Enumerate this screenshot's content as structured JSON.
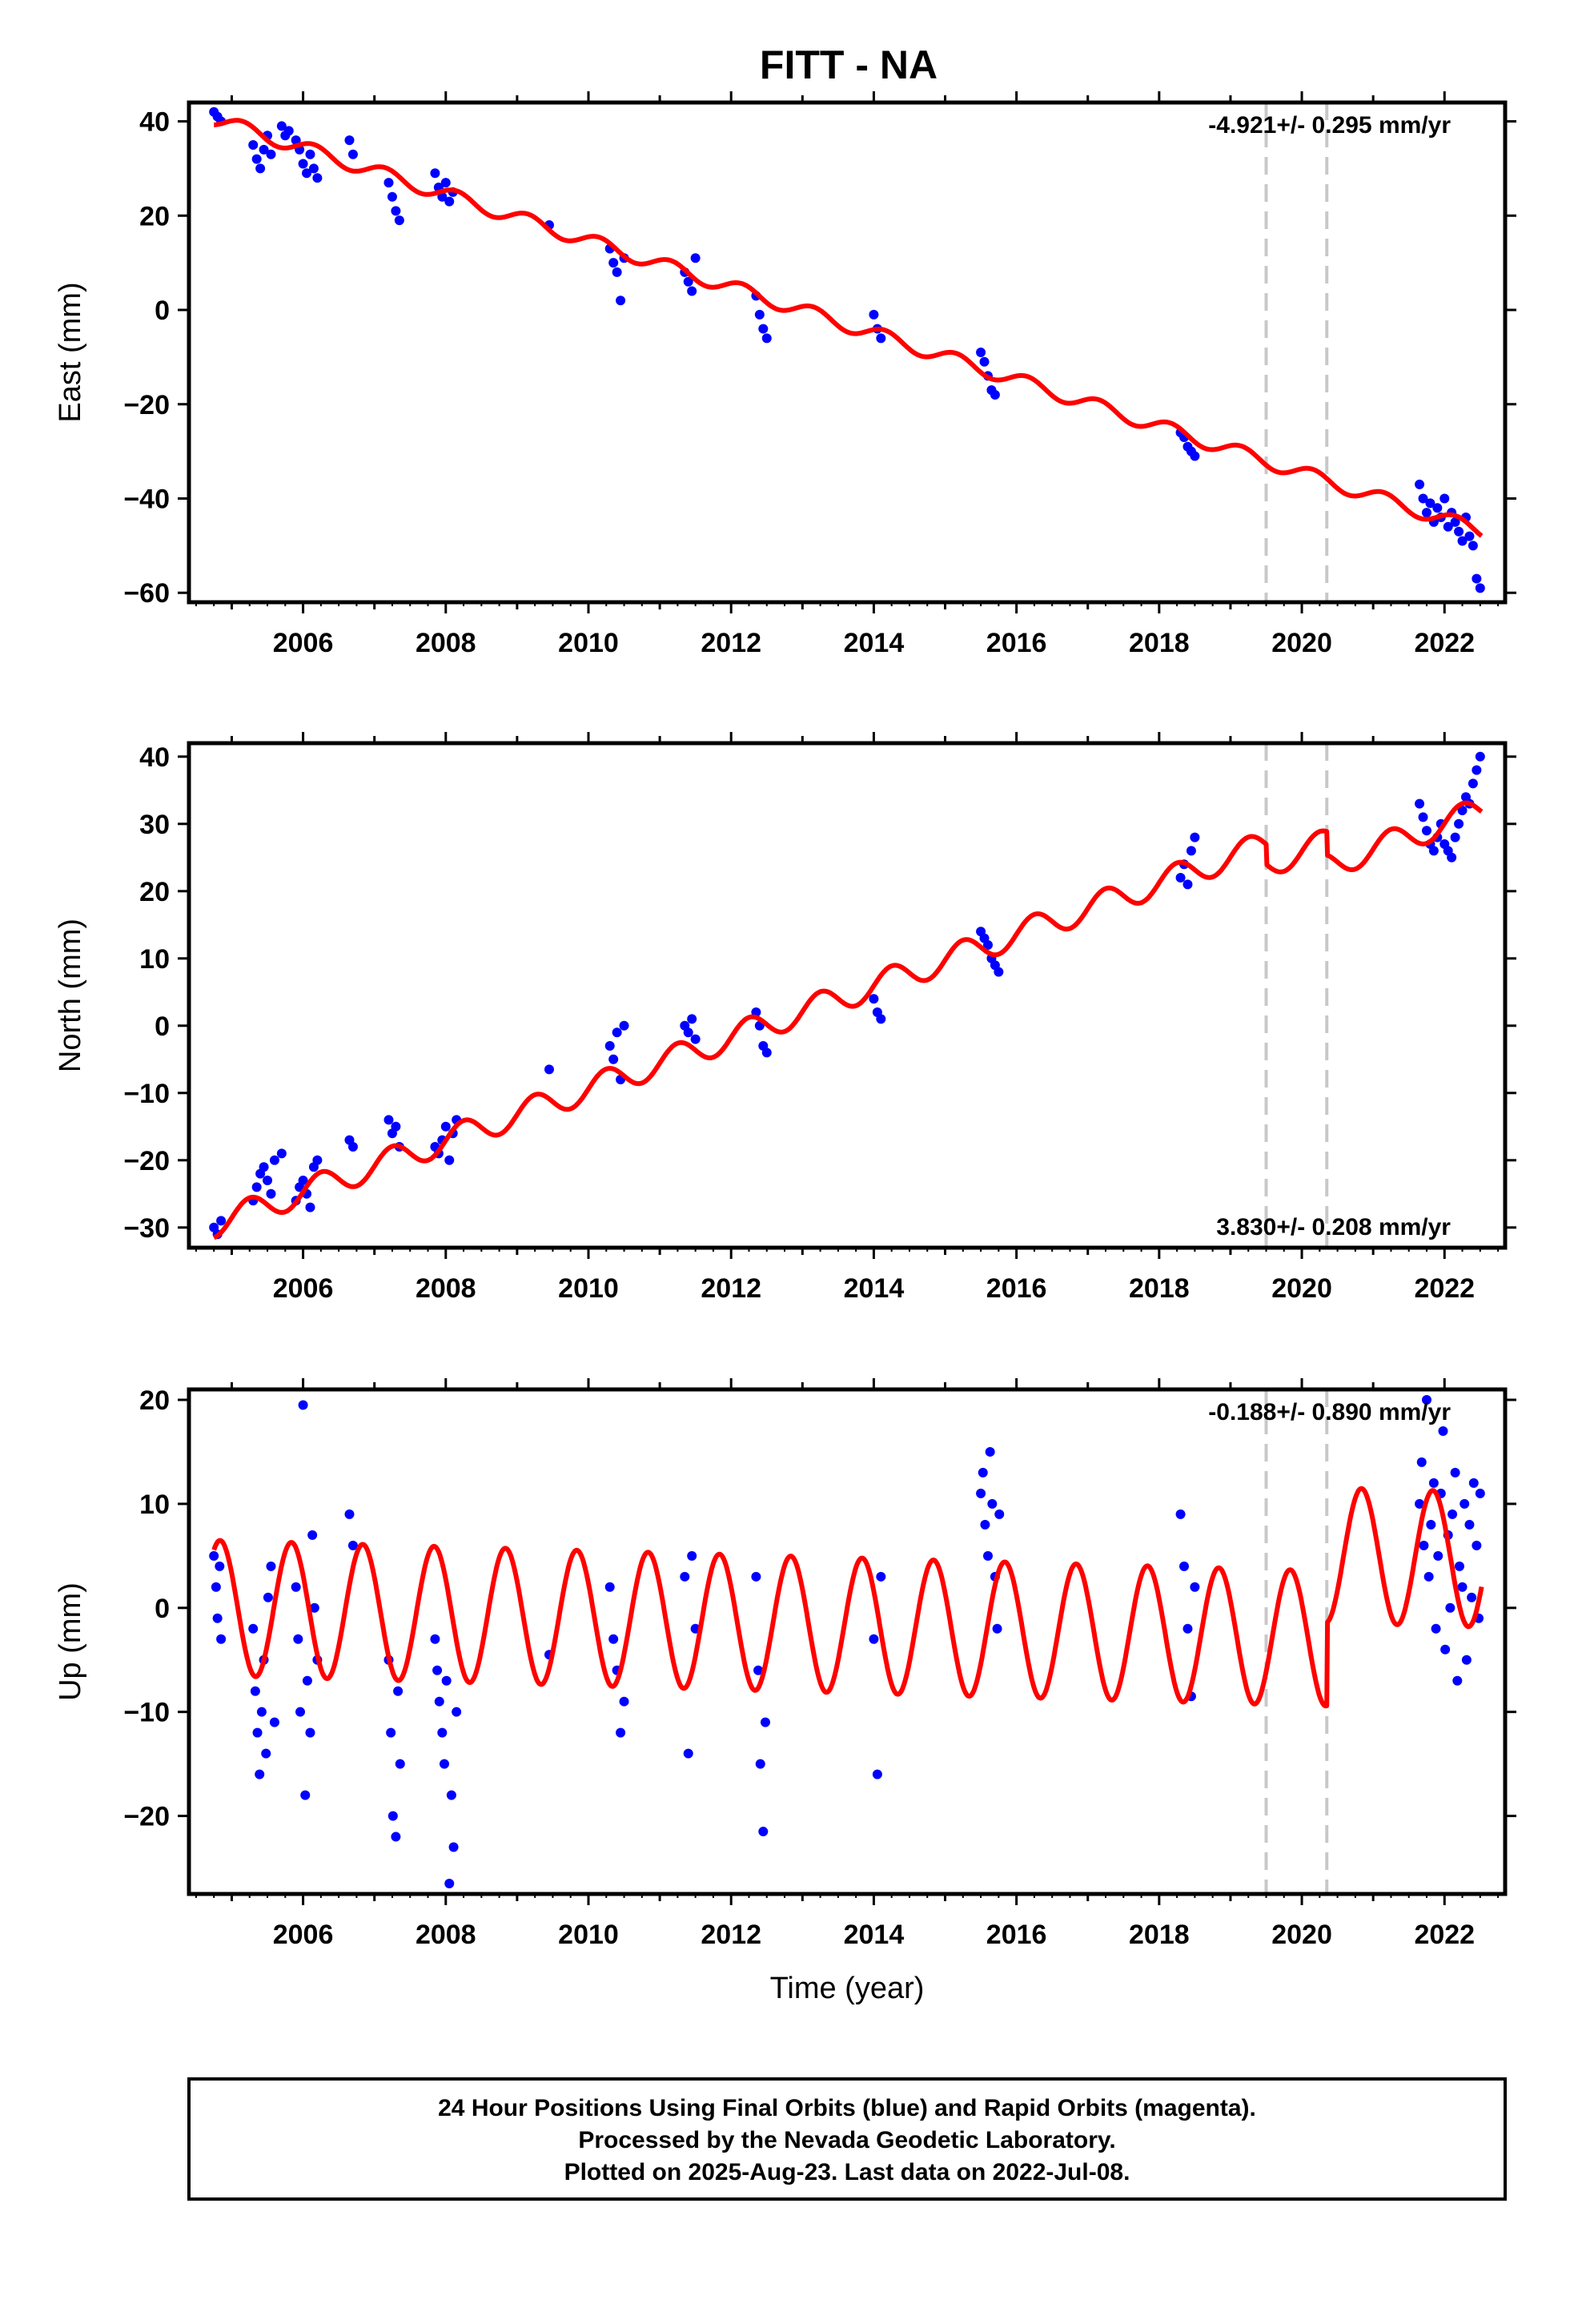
{
  "title": "FITT - NA",
  "footer": {
    "lines": [
      "24 Hour Positions Using Final Orbits (blue) and Rapid Orbits (magenta).",
      "Processed by the Nevada Geodetic Laboratory.",
      "Plotted on 2025-Aug-23. Last data on 2022-Jul-08."
    ]
  },
  "colors": {
    "data": "#0000ff",
    "model": "#ff0000",
    "break_lines": "#c8c8c8",
    "frame": "#000000"
  },
  "chart_data": [
    {
      "type": "scatter",
      "ylabel": "East (mm)",
      "xlabel": "",
      "rate_label": "-4.921+/- 0.295 mm/yr",
      "rate_position": "top-right",
      "xlim": [
        2004.4,
        2022.85
      ],
      "ylim": [
        -62,
        44
      ],
      "xticks": [
        2006,
        2008,
        2010,
        2012,
        2014,
        2016,
        2018,
        2020,
        2022
      ],
      "yticks": [
        -60,
        -40,
        -20,
        0,
        20,
        40
      ],
      "break_lines_x": [
        2019.5,
        2020.35
      ],
      "model": {
        "intercept": 40.5,
        "rate": -4.921,
        "amplitude": 1.5,
        "phase": 0.6,
        "offsets": []
      },
      "series": [
        {
          "x": [
            2004.75,
            2004.8,
            2004.85
          ],
          "values": [
            42,
            41,
            40
          ]
        },
        {
          "x": [
            2005.3,
            2005.35,
            2005.4,
            2005.45,
            2005.5,
            2005.55
          ],
          "values": [
            35,
            32,
            30,
            34,
            37,
            33
          ]
        },
        {
          "x": [
            2005.7,
            2005.75,
            2005.8
          ],
          "values": [
            39,
            37,
            38
          ]
        },
        {
          "x": [
            2005.9,
            2005.95,
            2006.0,
            2006.05,
            2006.1,
            2006.15,
            2006.2
          ],
          "values": [
            36,
            34,
            31,
            29,
            33,
            30,
            28
          ]
        },
        {
          "x": [
            2006.65,
            2006.7
          ],
          "values": [
            36,
            33
          ]
        },
        {
          "x": [
            2007.2,
            2007.25,
            2007.3,
            2007.35
          ],
          "values": [
            27,
            24,
            21,
            19
          ]
        },
        {
          "x": [
            2007.85,
            2007.9,
            2007.95,
            2008.0,
            2008.05,
            2008.1
          ],
          "values": [
            29,
            26,
            24,
            27,
            23,
            25
          ]
        },
        {
          "x": [
            2009.45
          ],
          "values": [
            18
          ]
        },
        {
          "x": [
            2010.3,
            2010.35,
            2010.4,
            2010.45,
            2010.5
          ],
          "values": [
            13,
            10,
            8,
            2,
            11
          ]
        },
        {
          "x": [
            2011.35,
            2011.4,
            2011.45,
            2011.5
          ],
          "values": [
            8,
            6,
            4,
            11
          ]
        },
        {
          "x": [
            2012.35,
            2012.4,
            2012.45,
            2012.5
          ],
          "values": [
            3,
            -1,
            -4,
            -6
          ]
        },
        {
          "x": [
            2014.0,
            2014.05,
            2014.1
          ],
          "values": [
            -1,
            -4,
            -6
          ]
        },
        {
          "x": [
            2015.5,
            2015.55,
            2015.6,
            2015.65,
            2015.7
          ],
          "values": [
            -9,
            -11,
            -14,
            -17,
            -18
          ]
        },
        {
          "x": [
            2018.3,
            2018.35,
            2018.4,
            2018.45,
            2018.5
          ],
          "values": [
            -26,
            -27,
            -29,
            -30,
            -31
          ]
        },
        {
          "x": [
            2021.65,
            2021.7,
            2021.75,
            2021.8,
            2021.85,
            2021.9,
            2021.95,
            2022.0,
            2022.05,
            2022.1,
            2022.15,
            2022.2,
            2022.25,
            2022.3,
            2022.35,
            2022.4,
            2022.45,
            2022.5
          ],
          "values": [
            -37,
            -40,
            -43,
            -41,
            -45,
            -42,
            -44,
            -40,
            -46,
            -43,
            -45,
            -47,
            -49,
            -44,
            -48,
            -50,
            -57,
            -59
          ]
        }
      ]
    },
    {
      "type": "scatter",
      "ylabel": "North (mm)",
      "xlabel": "",
      "rate_label": "3.830+/- 0.208 mm/yr",
      "rate_position": "bottom-right",
      "xlim": [
        2004.4,
        2022.85
      ],
      "ylim": [
        -33,
        42
      ],
      "xticks": [
        2006,
        2008,
        2010,
        2012,
        2014,
        2016,
        2018,
        2020,
        2022
      ],
      "yticks": [
        -30,
        -20,
        -10,
        0,
        10,
        20,
        30,
        40
      ],
      "break_lines_x": [
        2019.5,
        2020.35
      ],
      "model": {
        "intercept": -29.5,
        "rate": 3.83,
        "amplitude": 2.0,
        "phase": 0.0,
        "offsets": [
          {
            "x": 2019.5,
            "dy": -3.0
          },
          {
            "x": 2020.35,
            "dy": -3.5
          }
        ]
      },
      "series": [
        {
          "x": [
            2004.75,
            2004.8,
            2004.85
          ],
          "values": [
            -30,
            -31,
            -29
          ]
        },
        {
          "x": [
            2005.3,
            2005.35,
            2005.4,
            2005.45,
            2005.5,
            2005.55,
            2005.6,
            2005.7
          ],
          "values": [
            -26,
            -24,
            -22,
            -21,
            -23,
            -25,
            -20,
            -19
          ]
        },
        {
          "x": [
            2005.9,
            2005.95,
            2006.0,
            2006.05,
            2006.1,
            2006.15,
            2006.2
          ],
          "values": [
            -26,
            -24,
            -23,
            -25,
            -27,
            -21,
            -20
          ]
        },
        {
          "x": [
            2006.65,
            2006.7
          ],
          "values": [
            -17,
            -18
          ]
        },
        {
          "x": [
            2007.2,
            2007.25,
            2007.3,
            2007.35
          ],
          "values": [
            -14,
            -16,
            -15,
            -18
          ]
        },
        {
          "x": [
            2007.85,
            2007.9,
            2007.95,
            2008.0,
            2008.05,
            2008.1,
            2008.15
          ],
          "values": [
            -18,
            -19,
            -17,
            -15,
            -20,
            -16,
            -14
          ]
        },
        {
          "x": [
            2009.45
          ],
          "values": [
            -6.5
          ]
        },
        {
          "x": [
            2010.3,
            2010.35,
            2010.4,
            2010.45,
            2010.5
          ],
          "values": [
            -3,
            -5,
            -1,
            -8,
            0
          ]
        },
        {
          "x": [
            2011.35,
            2011.4,
            2011.45,
            2011.5
          ],
          "values": [
            0,
            -1,
            1,
            -2
          ]
        },
        {
          "x": [
            2012.35,
            2012.4,
            2012.45,
            2012.5
          ],
          "values": [
            2,
            0,
            -3,
            -4
          ]
        },
        {
          "x": [
            2014.0,
            2014.05,
            2014.1
          ],
          "values": [
            4,
            2,
            1
          ]
        },
        {
          "x": [
            2015.5,
            2015.55,
            2015.6,
            2015.65,
            2015.7,
            2015.75
          ],
          "values": [
            14,
            13,
            12,
            10,
            9,
            8
          ]
        },
        {
          "x": [
            2018.3,
            2018.35,
            2018.4,
            2018.45,
            2018.5
          ],
          "values": [
            22,
            24,
            21,
            26,
            28
          ]
        },
        {
          "x": [
            2021.65,
            2021.7,
            2021.75,
            2021.8,
            2021.85,
            2021.9,
            2021.95,
            2022.0,
            2022.05,
            2022.1,
            2022.15,
            2022.2,
            2022.25,
            2022.3,
            2022.35,
            2022.4,
            2022.45,
            2022.5
          ],
          "values": [
            33,
            31,
            29,
            27,
            26,
            28,
            30,
            27,
            26,
            25,
            28,
            30,
            32,
            34,
            33,
            36,
            38,
            40
          ]
        }
      ]
    },
    {
      "type": "scatter",
      "ylabel": "Up (mm)",
      "xlabel": "Time (year)",
      "rate_label": "-0.188+/- 0.890 mm/yr",
      "rate_position": "top-right",
      "xlim": [
        2004.4,
        2022.85
      ],
      "ylim": [
        -27.5,
        21
      ],
      "xticks": [
        2006,
        2008,
        2010,
        2012,
        2014,
        2016,
        2018,
        2020,
        2022
      ],
      "yticks": [
        -20,
        -10,
        0,
        10,
        20
      ],
      "break_lines_x": [
        2019.5,
        2020.35
      ],
      "model": {
        "intercept": 0,
        "rate": -0.188,
        "amplitude": 6.5,
        "phase": 2.6,
        "offsets": [
          {
            "x": 2020.35,
            "dy": 8.0
          }
        ]
      },
      "series": [
        {
          "x": [
            2004.75,
            2004.78,
            2004.8,
            2004.83,
            2004.85
          ],
          "values": [
            5,
            2,
            -1,
            4,
            -3
          ]
        },
        {
          "x": [
            2005.3,
            2005.33,
            2005.36,
            2005.39,
            2005.42,
            2005.45,
            2005.48,
            2005.51,
            2005.55,
            2005.6
          ],
          "values": [
            -2,
            -8,
            -12,
            -16,
            -10,
            -5,
            -14,
            1,
            4,
            -11
          ]
        },
        {
          "x": [
            2005.9,
            2005.93,
            2005.96,
            2006.0,
            2006.03,
            2006.06,
            2006.1,
            2006.13,
            2006.16,
            2006.2
          ],
          "values": [
            2,
            -3,
            -10,
            19.5,
            -18,
            -7,
            -12,
            7,
            0,
            -5
          ]
        },
        {
          "x": [
            2006.65,
            2006.7
          ],
          "values": [
            9,
            6
          ]
        },
        {
          "x": [
            2007.2,
            2007.23,
            2007.26,
            2007.3,
            2007.33,
            2007.36
          ],
          "values": [
            -5,
            -12,
            -20,
            -22,
            -8,
            -15
          ]
        },
        {
          "x": [
            2007.85,
            2007.88,
            2007.91,
            2007.95,
            2007.98,
            2008.01,
            2008.05,
            2008.08,
            2008.11,
            2008.15
          ],
          "values": [
            -3,
            -6,
            -9,
            -12,
            -15,
            -7,
            -26.5,
            -18,
            -23,
            -10
          ]
        },
        {
          "x": [
            2009.45
          ],
          "values": [
            -4.5
          ]
        },
        {
          "x": [
            2010.3,
            2010.35,
            2010.4,
            2010.45,
            2010.5
          ],
          "values": [
            2,
            -3,
            -6,
            -12,
            -9
          ]
        },
        {
          "x": [
            2011.35,
            2011.4,
            2011.45,
            2011.5
          ],
          "values": [
            3,
            -14,
            5,
            -2
          ]
        },
        {
          "x": [
            2012.35,
            2012.38,
            2012.41,
            2012.45,
            2012.48
          ],
          "values": [
            3,
            -6,
            -15,
            -21.5,
            -11
          ]
        },
        {
          "x": [
            2014.0,
            2014.05,
            2014.1
          ],
          "values": [
            -3,
            -16,
            3
          ]
        },
        {
          "x": [
            2015.5,
            2015.53,
            2015.56,
            2015.6,
            2015.63,
            2015.66,
            2015.7,
            2015.73,
            2015.76
          ],
          "values": [
            11,
            13,
            8,
            5,
            15,
            10,
            3,
            -2,
            9
          ]
        },
        {
          "x": [
            2018.3,
            2018.35,
            2018.4,
            2018.45,
            2018.5
          ],
          "values": [
            9,
            4,
            -2,
            -8.5,
            2
          ]
        },
        {
          "x": [
            2021.65,
            2021.68,
            2021.71,
            2021.75,
            2021.78,
            2021.81,
            2021.85,
            2021.88,
            2021.91,
            2021.95,
            2021.98,
            2022.01,
            2022.05,
            2022.08,
            2022.11,
            2022.15,
            2022.18,
            2022.21,
            2022.25,
            2022.28,
            2022.31,
            2022.35,
            2022.38,
            2022.41,
            2022.45,
            2022.48,
            2022.5
          ],
          "values": [
            10,
            14,
            6,
            20,
            3,
            8,
            12,
            -2,
            5,
            11,
            17,
            -4,
            7,
            0,
            9,
            13,
            -7,
            4,
            2,
            10,
            -5,
            8,
            1,
            12,
            6,
            -1,
            11
          ]
        }
      ]
    }
  ]
}
